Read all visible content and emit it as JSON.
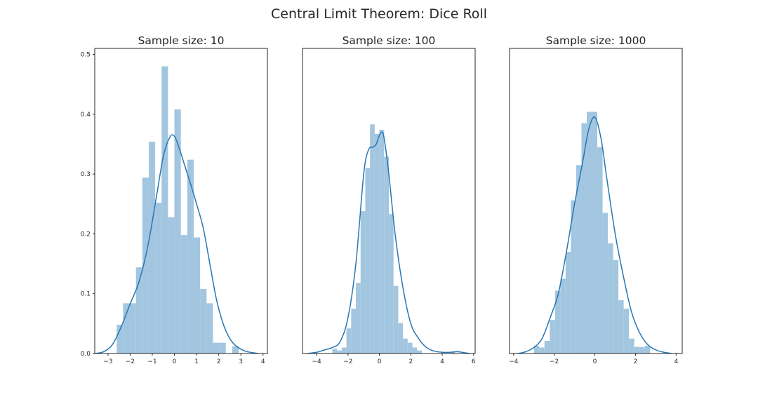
{
  "figure_title": "Central Limit Theorem: Dice Roll",
  "chart_data": [
    {
      "type": "bar",
      "subtype": "histogram_with_kde",
      "title": "Sample size: 10",
      "xlim": [
        -3.6,
        4.2
      ],
      "ylim": [
        0,
        0.51
      ],
      "xticks": [
        -3,
        -2,
        -1,
        0,
        1,
        2,
        3,
        4
      ],
      "yticks": [
        0.0,
        0.1,
        0.2,
        0.3,
        0.4,
        0.5
      ],
      "ytick_labels": [
        "0.0",
        "0.1",
        "0.2",
        "0.3",
        "0.4",
        "0.5"
      ],
      "show_yticks": true,
      "bin_edges": [
        -2.61,
        -2.32,
        -2.03,
        -1.74,
        -1.45,
        -1.16,
        -0.87,
        -0.58,
        -0.29,
        0.0,
        0.29,
        0.58,
        0.87,
        1.16,
        1.45,
        1.74,
        2.03,
        2.32,
        2.61,
        2.9
      ],
      "bar_values": [
        0.048,
        0.084,
        0.084,
        0.144,
        0.294,
        0.354,
        0.252,
        0.48,
        0.228,
        0.408,
        0.198,
        0.324,
        0.194,
        0.108,
        0.084,
        0.018,
        0.018,
        0.0,
        0.012
      ],
      "kde_x": [
        -3.6,
        -3.2,
        -2.8,
        -2.4,
        -2.0,
        -1.6,
        -1.2,
        -0.8,
        -0.5,
        -0.2,
        0.0,
        0.2,
        0.5,
        0.8,
        1.0,
        1.3,
        1.6,
        1.9,
        2.2,
        2.5,
        2.8,
        3.2,
        3.6,
        3.8
      ],
      "kde_y": [
        0.0,
        0.003,
        0.015,
        0.045,
        0.083,
        0.12,
        0.18,
        0.265,
        0.33,
        0.362,
        0.363,
        0.345,
        0.31,
        0.275,
        0.25,
        0.21,
        0.15,
        0.09,
        0.05,
        0.025,
        0.012,
        0.004,
        0.001,
        0.0
      ]
    },
    {
      "type": "bar",
      "subtype": "histogram_with_kde",
      "title": "Sample size: 100",
      "xlim": [
        -4.9,
        6.1
      ],
      "ylim": [
        0,
        0.51
      ],
      "xticks": [
        -4,
        -2,
        0,
        2,
        4,
        6
      ],
      "yticks": [],
      "ytick_labels": [],
      "show_yticks": false,
      "bin_edges": [
        -3.0,
        -2.7,
        -2.4,
        -2.1,
        -1.8,
        -1.5,
        -1.2,
        -0.9,
        -0.6,
        -0.3,
        0.0,
        0.3,
        0.6,
        0.9,
        1.2,
        1.5,
        1.8,
        2.1,
        2.4,
        2.7,
        3.0,
        3.3,
        3.6,
        3.9,
        4.2,
        4.5,
        4.8,
        5.1
      ],
      "bar_values": [
        0.008,
        0.005,
        0.01,
        0.042,
        0.075,
        0.118,
        0.238,
        0.31,
        0.383,
        0.367,
        0.374,
        0.329,
        0.233,
        0.113,
        0.051,
        0.025,
        0.018,
        0.01,
        0.005,
        0.0,
        0.0,
        0.0,
        0.0,
        0.0,
        0.0,
        0.003,
        0.0
      ],
      "kde_x": [
        -4.6,
        -4.0,
        -3.5,
        -3.0,
        -2.5,
        -2.0,
        -1.5,
        -1.0,
        -0.7,
        -0.4,
        -0.2,
        0.0,
        0.15,
        0.3,
        0.6,
        1.0,
        1.5,
        2.0,
        2.5,
        3.0,
        3.5,
        4.0,
        4.5,
        5.0,
        5.5,
        5.8
      ],
      "kde_y": [
        0.0,
        0.002,
        0.006,
        0.01,
        0.02,
        0.06,
        0.15,
        0.3,
        0.34,
        0.345,
        0.35,
        0.365,
        0.37,
        0.36,
        0.3,
        0.2,
        0.11,
        0.05,
        0.025,
        0.01,
        0.004,
        0.002,
        0.002,
        0.003,
        0.001,
        0.0
      ]
    },
    {
      "type": "bar",
      "subtype": "histogram_with_kde",
      "title": "Sample size: 1000",
      "xlim": [
        -4.2,
        4.3
      ],
      "ylim": [
        0,
        0.51
      ],
      "xticks": [
        -4,
        -2,
        0,
        2,
        4
      ],
      "yticks": [],
      "ytick_labels": [],
      "show_yticks": false,
      "bin_edges": [
        -3.0,
        -2.74,
        -2.48,
        -2.22,
        -1.96,
        -1.7,
        -1.44,
        -1.18,
        -0.92,
        -0.66,
        -0.4,
        -0.14,
        0.12,
        0.38,
        0.64,
        0.9,
        1.16,
        1.42,
        1.68,
        1.94,
        2.2,
        2.46,
        2.72,
        2.98
      ],
      "bar_values": [
        0.013,
        0.01,
        0.021,
        0.056,
        0.105,
        0.125,
        0.17,
        0.256,
        0.315,
        0.385,
        0.404,
        0.404,
        0.345,
        0.235,
        0.184,
        0.156,
        0.089,
        0.075,
        0.025,
        0.011,
        0.011,
        0.013,
        0.0
      ],
      "kde_x": [
        -3.8,
        -3.4,
        -3.0,
        -2.6,
        -2.2,
        -1.8,
        -1.4,
        -1.0,
        -0.6,
        -0.3,
        0.0,
        0.3,
        0.6,
        1.0,
        1.4,
        1.8,
        2.2,
        2.6,
        3.0,
        3.4,
        3.8
      ],
      "kde_y": [
        0.0,
        0.003,
        0.01,
        0.025,
        0.06,
        0.1,
        0.17,
        0.25,
        0.32,
        0.375,
        0.395,
        0.36,
        0.29,
        0.2,
        0.13,
        0.07,
        0.035,
        0.015,
        0.006,
        0.002,
        0.0
      ]
    }
  ]
}
